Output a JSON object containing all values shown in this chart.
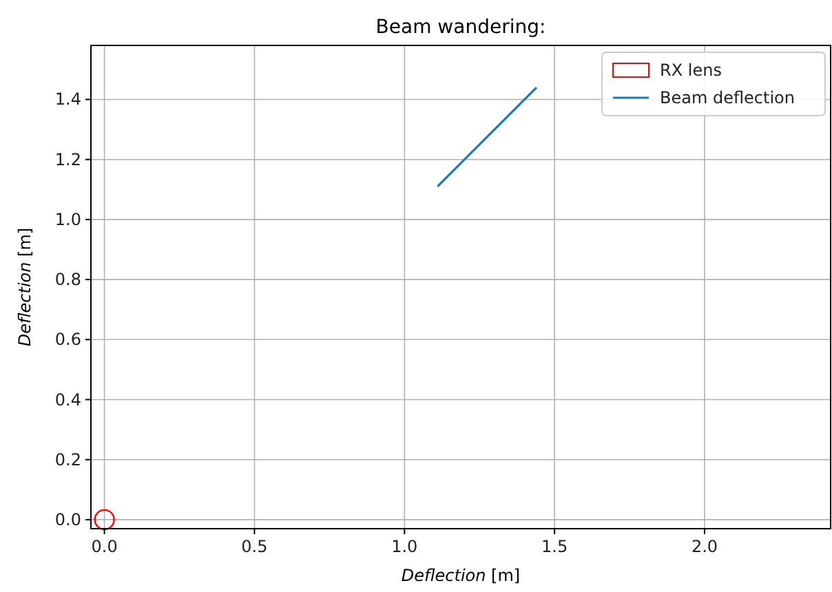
{
  "chart_data": {
    "type": "line",
    "title": "Beam wandering:",
    "xlabel": "Deflection [m]",
    "ylabel": "Deflection [m]",
    "series": [
      {
        "name": "RX lens",
        "type": "scatter",
        "color": "#ff0000",
        "marker": "circle",
        "x": [
          0
        ],
        "values": [
          0
        ]
      },
      {
        "name": "Beam deflection",
        "color": "#1f77b4",
        "x": [
          1.11,
          1.2,
          1.3,
          1.44
        ],
        "values": [
          1.11,
          1.2,
          1.3,
          1.44
        ]
      }
    ],
    "xlim": [
      -0.045,
      2.42
    ],
    "ylim": [
      -0.03,
      1.58
    ],
    "xticks": [
      {
        "value": 0,
        "label": "0.0"
      },
      0.5,
      {
        "value": 1,
        "label": "1.0"
      },
      1.5,
      {
        "value": 2,
        "label": "2.0"
      }
    ],
    "yticks": [
      {
        "value": 0,
        "label": "0.0"
      },
      0.2,
      0.4,
      0.6,
      0.8,
      {
        "value": 1,
        "label": "1.0"
      },
      1.2,
      1.4
    ],
    "grid": true,
    "legend": "top right"
  }
}
